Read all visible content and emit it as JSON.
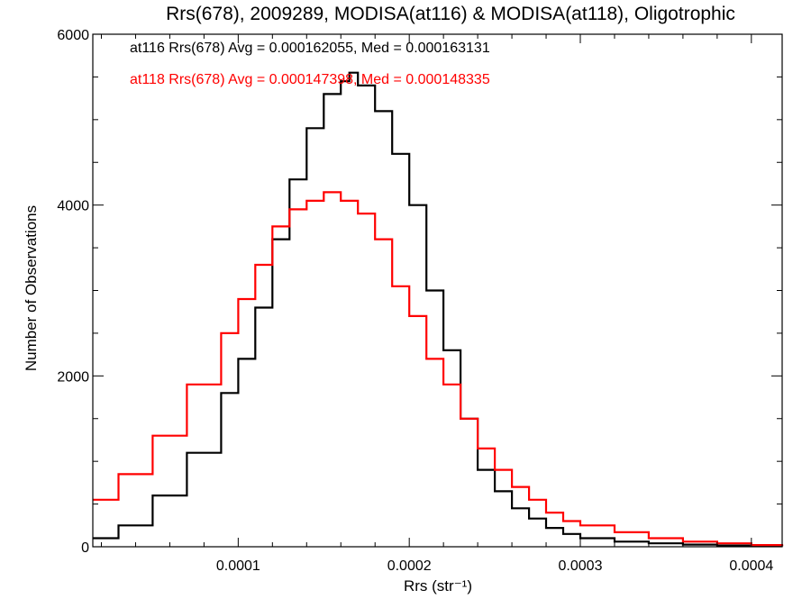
{
  "chart_data": {
    "type": "line",
    "step": true,
    "title": "Rrs(678), 2009289, MODISA(at116) & MODISA(at118), Oligotrophic",
    "xlabel": "Rrs (str⁻¹)",
    "ylabel": "Number of Observations",
    "xlim": [
      1.5e-05,
      0.000418
    ],
    "ylim": [
      0,
      6000
    ],
    "x_ticks": [
      0.0001,
      0.0002,
      0.0003,
      0.0004
    ],
    "x_tick_labels": [
      "0.0001",
      "0.0002",
      "0.0003",
      "0.0004"
    ],
    "y_ticks": [
      0,
      2000,
      4000,
      6000
    ],
    "y_tick_labels": [
      "0",
      "2000",
      "4000",
      "6000"
    ],
    "annotations": [
      "at116 Rrs(678) Avg = 0.000162055, Med = 0.000163131",
      "at118 Rrs(678) Avg = 0.000147398, Med = 0.000148335"
    ],
    "series": [
      {
        "color": "#000000",
        "x": [
          1.5e-05,
          3e-05,
          5e-05,
          7e-05,
          9e-05,
          0.0001,
          0.00011,
          0.00012,
          0.00013,
          0.00014,
          0.00015,
          0.00016,
          0.000165,
          0.00017,
          0.00018,
          0.00019,
          0.0002,
          0.00021,
          0.00022,
          0.00023,
          0.00024,
          0.00025,
          0.00026,
          0.00027,
          0.00028,
          0.00029,
          0.0003,
          0.00032,
          0.00034,
          0.00036,
          0.00038,
          0.0004,
          0.000418
        ],
        "values": [
          100,
          250,
          600,
          1100,
          1800,
          2200,
          2800,
          3600,
          4300,
          4900,
          5300,
          5450,
          5550,
          5400,
          5100,
          4600,
          4000,
          3000,
          2300,
          1500,
          900,
          650,
          450,
          330,
          220,
          150,
          100,
          60,
          40,
          25,
          15,
          10,
          5
        ]
      },
      {
        "color": "#ff0000",
        "x": [
          1.5e-05,
          3e-05,
          5e-05,
          7e-05,
          9e-05,
          0.0001,
          0.00011,
          0.00012,
          0.00013,
          0.00014,
          0.00015,
          0.00016,
          0.00017,
          0.00018,
          0.00019,
          0.0002,
          0.00021,
          0.00022,
          0.00023,
          0.00024,
          0.00025,
          0.00026,
          0.00027,
          0.00028,
          0.00029,
          0.0003,
          0.00032,
          0.00034,
          0.00036,
          0.00038,
          0.0004,
          0.000418
        ],
        "values": [
          550,
          850,
          1300,
          1900,
          2500,
          2900,
          3300,
          3750,
          3950,
          4050,
          4150,
          4050,
          3900,
          3600,
          3050,
          2700,
          2200,
          1900,
          1500,
          1150,
          900,
          700,
          550,
          400,
          300,
          250,
          170,
          100,
          60,
          40,
          20,
          10
        ]
      }
    ]
  }
}
